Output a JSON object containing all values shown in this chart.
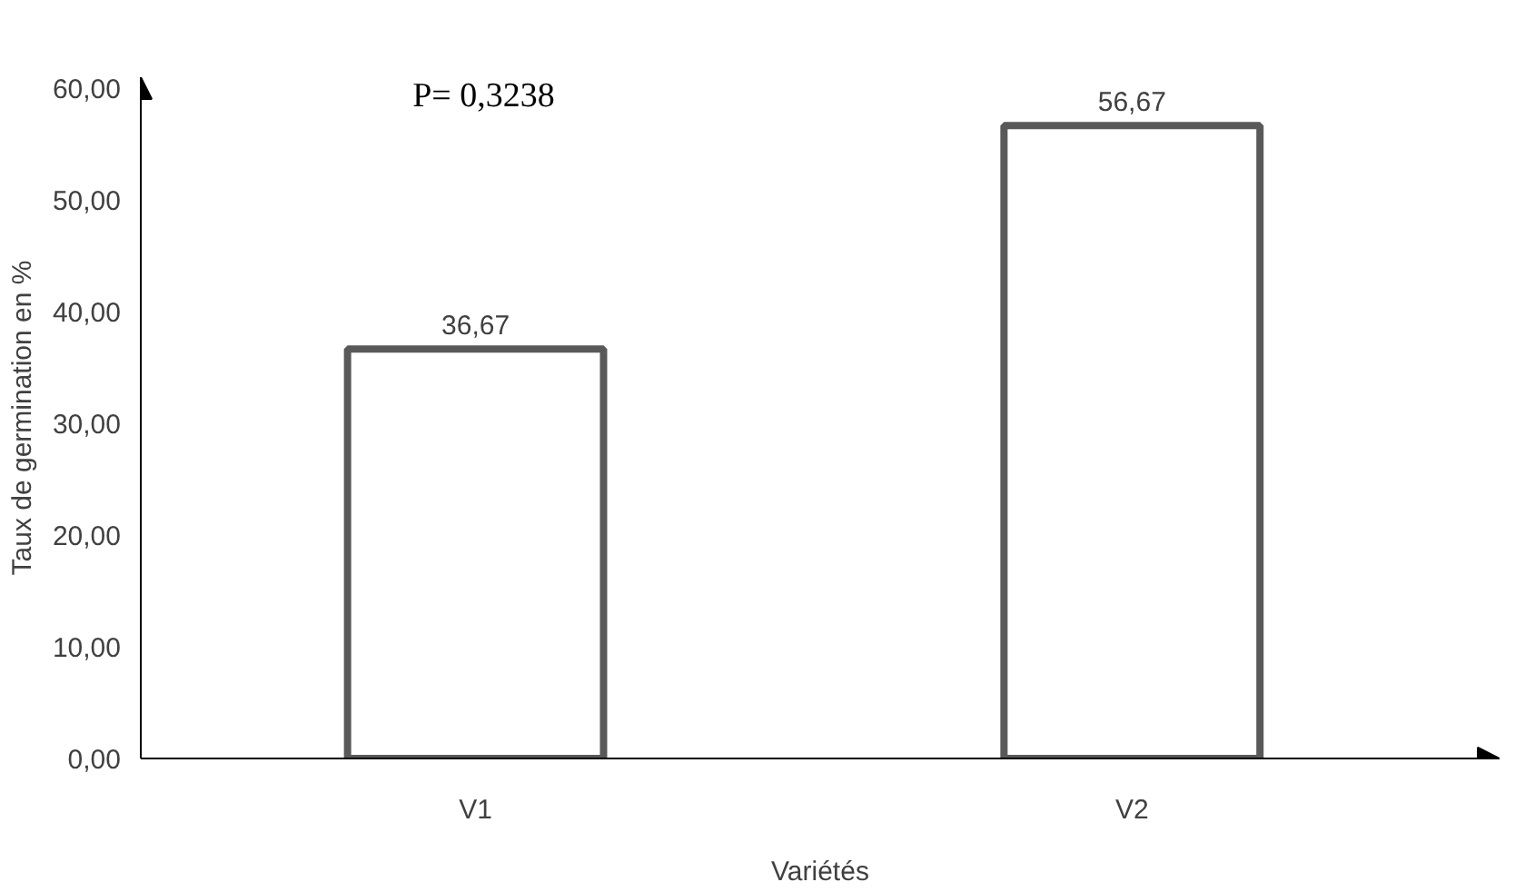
{
  "chart_data": {
    "type": "bar",
    "categories": [
      "V1",
      "V2"
    ],
    "values": [
      36.67,
      56.67
    ],
    "value_labels": [
      "36,67",
      "56,67"
    ],
    "color": "#595959",
    "xlabel": "Variétés",
    "ylabel": "Taux de germination en %",
    "annotations": [
      "P= 0,3238"
    ],
    "ylim": [
      0,
      61
    ],
    "yticks": [
      {
        "value": 0,
        "label": "0,00"
      },
      {
        "value": 10,
        "label": "10,00"
      },
      {
        "value": 20,
        "label": "20,00"
      },
      {
        "value": 30,
        "label": "30,00"
      },
      {
        "value": 40,
        "label": "40,00"
      },
      {
        "value": 50,
        "label": "50,00"
      },
      {
        "value": 60,
        "label": "60,00"
      }
    ],
    "grid": false
  }
}
